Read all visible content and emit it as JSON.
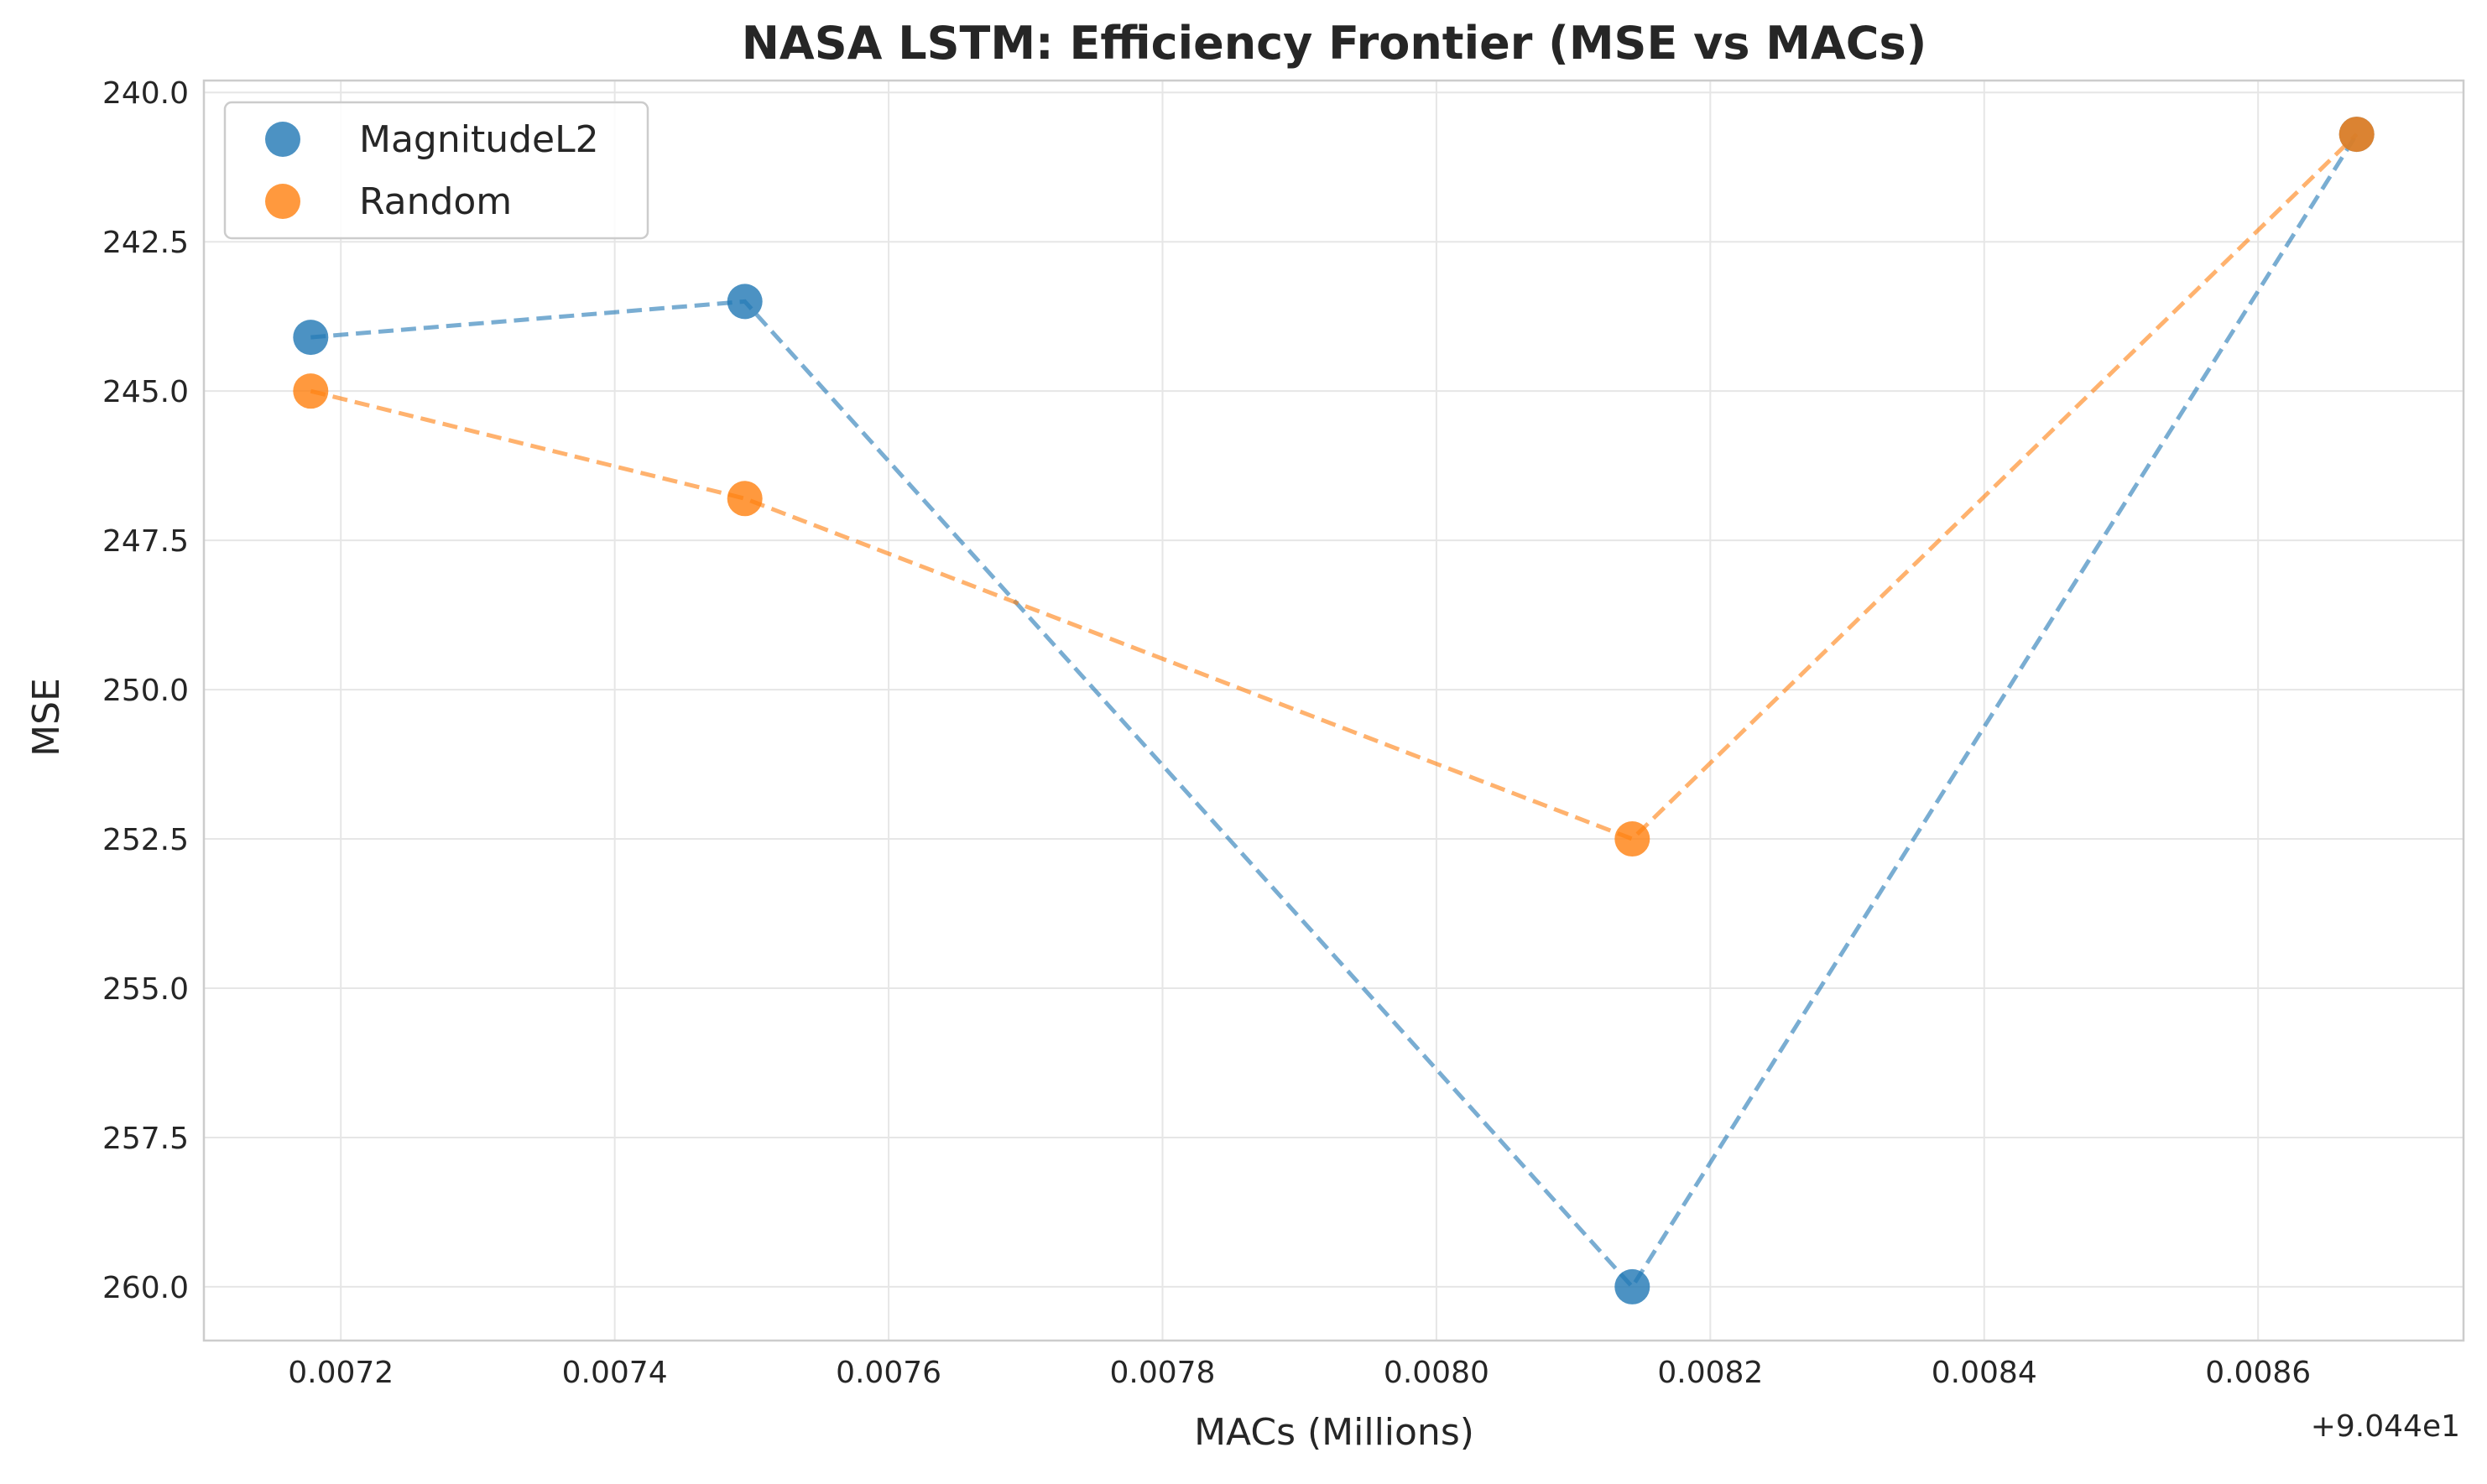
{
  "chart_data": {
    "type": "scatter",
    "title": "NASA LSTM: Efficiency Frontier (MSE vs MACs)",
    "xlabel": "MACs (Millions)",
    "ylabel": "MSE",
    "x_offset_label": "+9.044e1",
    "xlim": [
      0.0071,
      0.00875
    ],
    "ylim": [
      260.9,
      239.8
    ],
    "y_inverted": true,
    "xticks": [
      "0.0072",
      "0.0074",
      "0.0076",
      "0.0078",
      "0.0080",
      "0.0082",
      "0.0084",
      "0.0086"
    ],
    "yticks": [
      "240.0",
      "242.5",
      "245.0",
      "247.5",
      "250.0",
      "252.5",
      "255.0",
      "257.5",
      "260.0"
    ],
    "grid": true,
    "legend_position": "top-left",
    "series": [
      {
        "name": "MagnitudeL2",
        "color": "#1f77b4",
        "line_style": "dashed",
        "x": [
          0.007178,
          0.007495,
          0.008143,
          0.008672
        ],
        "y": [
          244.1,
          243.5,
          260.0,
          240.7
        ]
      },
      {
        "name": "Random",
        "color": "#ff7f0e",
        "line_style": "dashed",
        "x": [
          0.007178,
          0.007495,
          0.008143,
          0.008672
        ],
        "y": [
          245.0,
          246.8,
          252.5,
          240.7
        ]
      }
    ]
  }
}
